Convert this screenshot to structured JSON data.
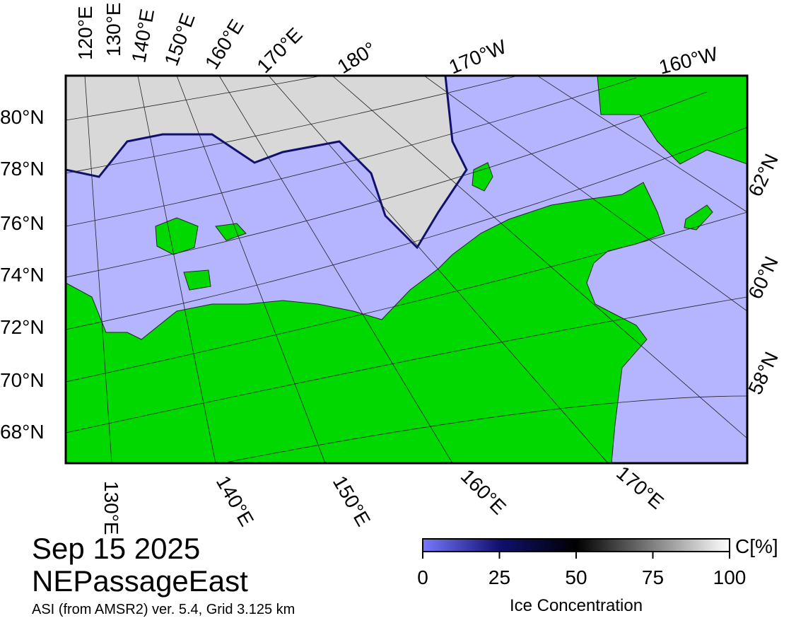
{
  "map": {
    "top_lon_labels": [
      "120°E",
      "130°E",
      "140°E",
      "150°E",
      "160°E",
      "170°E",
      "180°",
      "170°W",
      "160°W"
    ],
    "left_lat_labels": [
      "80°N",
      "78°N",
      "76°N",
      "74°N",
      "72°N",
      "70°N",
      "68°N"
    ],
    "right_lat_labels": [
      "62°N",
      "60°N",
      "58°N"
    ],
    "bottom_lon_labels": [
      "130°E",
      "140°E",
      "150°E",
      "160°E",
      "170°E"
    ]
  },
  "info": {
    "date": "Sep 15 2025",
    "region": "NEPassageEast",
    "source": "ASI (from AMSR2) ver. 5.4,  Grid 3.125 km"
  },
  "colorbar": {
    "label": "C[%]",
    "title": "Ice Concentration",
    "range": [
      0,
      100
    ],
    "ticks": [
      0,
      25,
      50,
      75,
      100
    ]
  }
}
